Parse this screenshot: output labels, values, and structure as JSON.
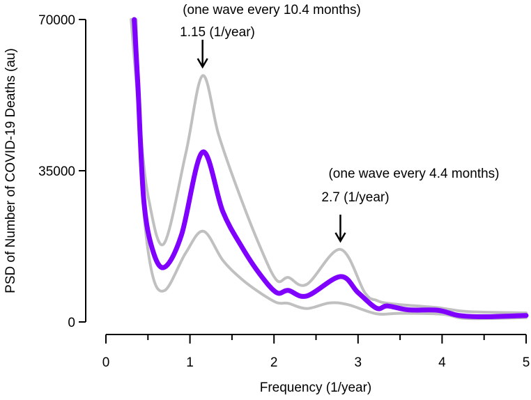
{
  "chart_data": {
    "type": "line",
    "title": "",
    "xlabel": "Frequency (1/year)",
    "ylabel": "PSD of Number of COVID-19 Deaths (au)",
    "xlim": [
      0,
      5
    ],
    "ylim": [
      0,
      70000
    ],
    "xticks": [
      0,
      1,
      2,
      3,
      4,
      5
    ],
    "xtick_labels": [
      "0",
      "1",
      "2",
      "3",
      "4",
      "5"
    ],
    "xminor_ticks": [
      0.5,
      1.5,
      2.5,
      3.5,
      4.5
    ],
    "yticks": [
      0,
      35000,
      70000
    ],
    "ytick_labels": [
      "0",
      "35000",
      "70000"
    ],
    "grid": false,
    "series": [
      {
        "name": "upper",
        "color": "#c0c0c0",
        "x": [
          0.3,
          0.41,
          0.51,
          0.69,
          0.95,
          1.15,
          1.34,
          1.56,
          1.83,
          2.03,
          2.17,
          2.39,
          2.79,
          3.08,
          3.22,
          3.4,
          3.95,
          4.3,
          5.0
        ],
        "y": [
          70000,
          44400,
          28300,
          18100,
          39000,
          57000,
          43400,
          31000,
          17600,
          9700,
          10300,
          8700,
          16800,
          6800,
          5000,
          4200,
          3300,
          2400,
          2100
        ]
      },
      {
        "name": "lower",
        "color": "#c0c0c0",
        "x": [
          0.36,
          0.42,
          0.54,
          0.7,
          0.95,
          1.16,
          1.39,
          1.61,
          1.83,
          2.03,
          2.17,
          2.39,
          2.66,
          2.88,
          3.22,
          3.5,
          4.0,
          4.3,
          5.0
        ],
        "y": [
          70000,
          33700,
          12100,
          7300,
          16000,
          21000,
          14300,
          10000,
          6800,
          4500,
          4300,
          3100,
          4400,
          4000,
          1900,
          2000,
          1800,
          800,
          1000
        ]
      },
      {
        "name": "mean",
        "color": "#7f00ff",
        "x": [
          0.337,
          0.38,
          0.45,
          0.56,
          0.7,
          0.9,
          1.15,
          1.39,
          1.61,
          1.83,
          2.03,
          2.17,
          2.39,
          2.79,
          3.0,
          3.22,
          3.35,
          3.6,
          3.95,
          4.2,
          4.5,
          5.0
        ],
        "y": [
          70000,
          55000,
          28300,
          16400,
          12700,
          20200,
          39300,
          25600,
          17600,
          11100,
          6800,
          7300,
          6000,
          10500,
          6800,
          3200,
          3700,
          2800,
          2700,
          1500,
          1200,
          1500
        ]
      }
    ],
    "annotations": [
      {
        "line1": "(one wave every 10.4 months)",
        "line2": "1.15 (1/year)",
        "x": 1.15
      },
      {
        "line1": "(one wave every 4.4 months)",
        "line2": "2.7 (1/year)",
        "x": 2.79
      }
    ]
  }
}
